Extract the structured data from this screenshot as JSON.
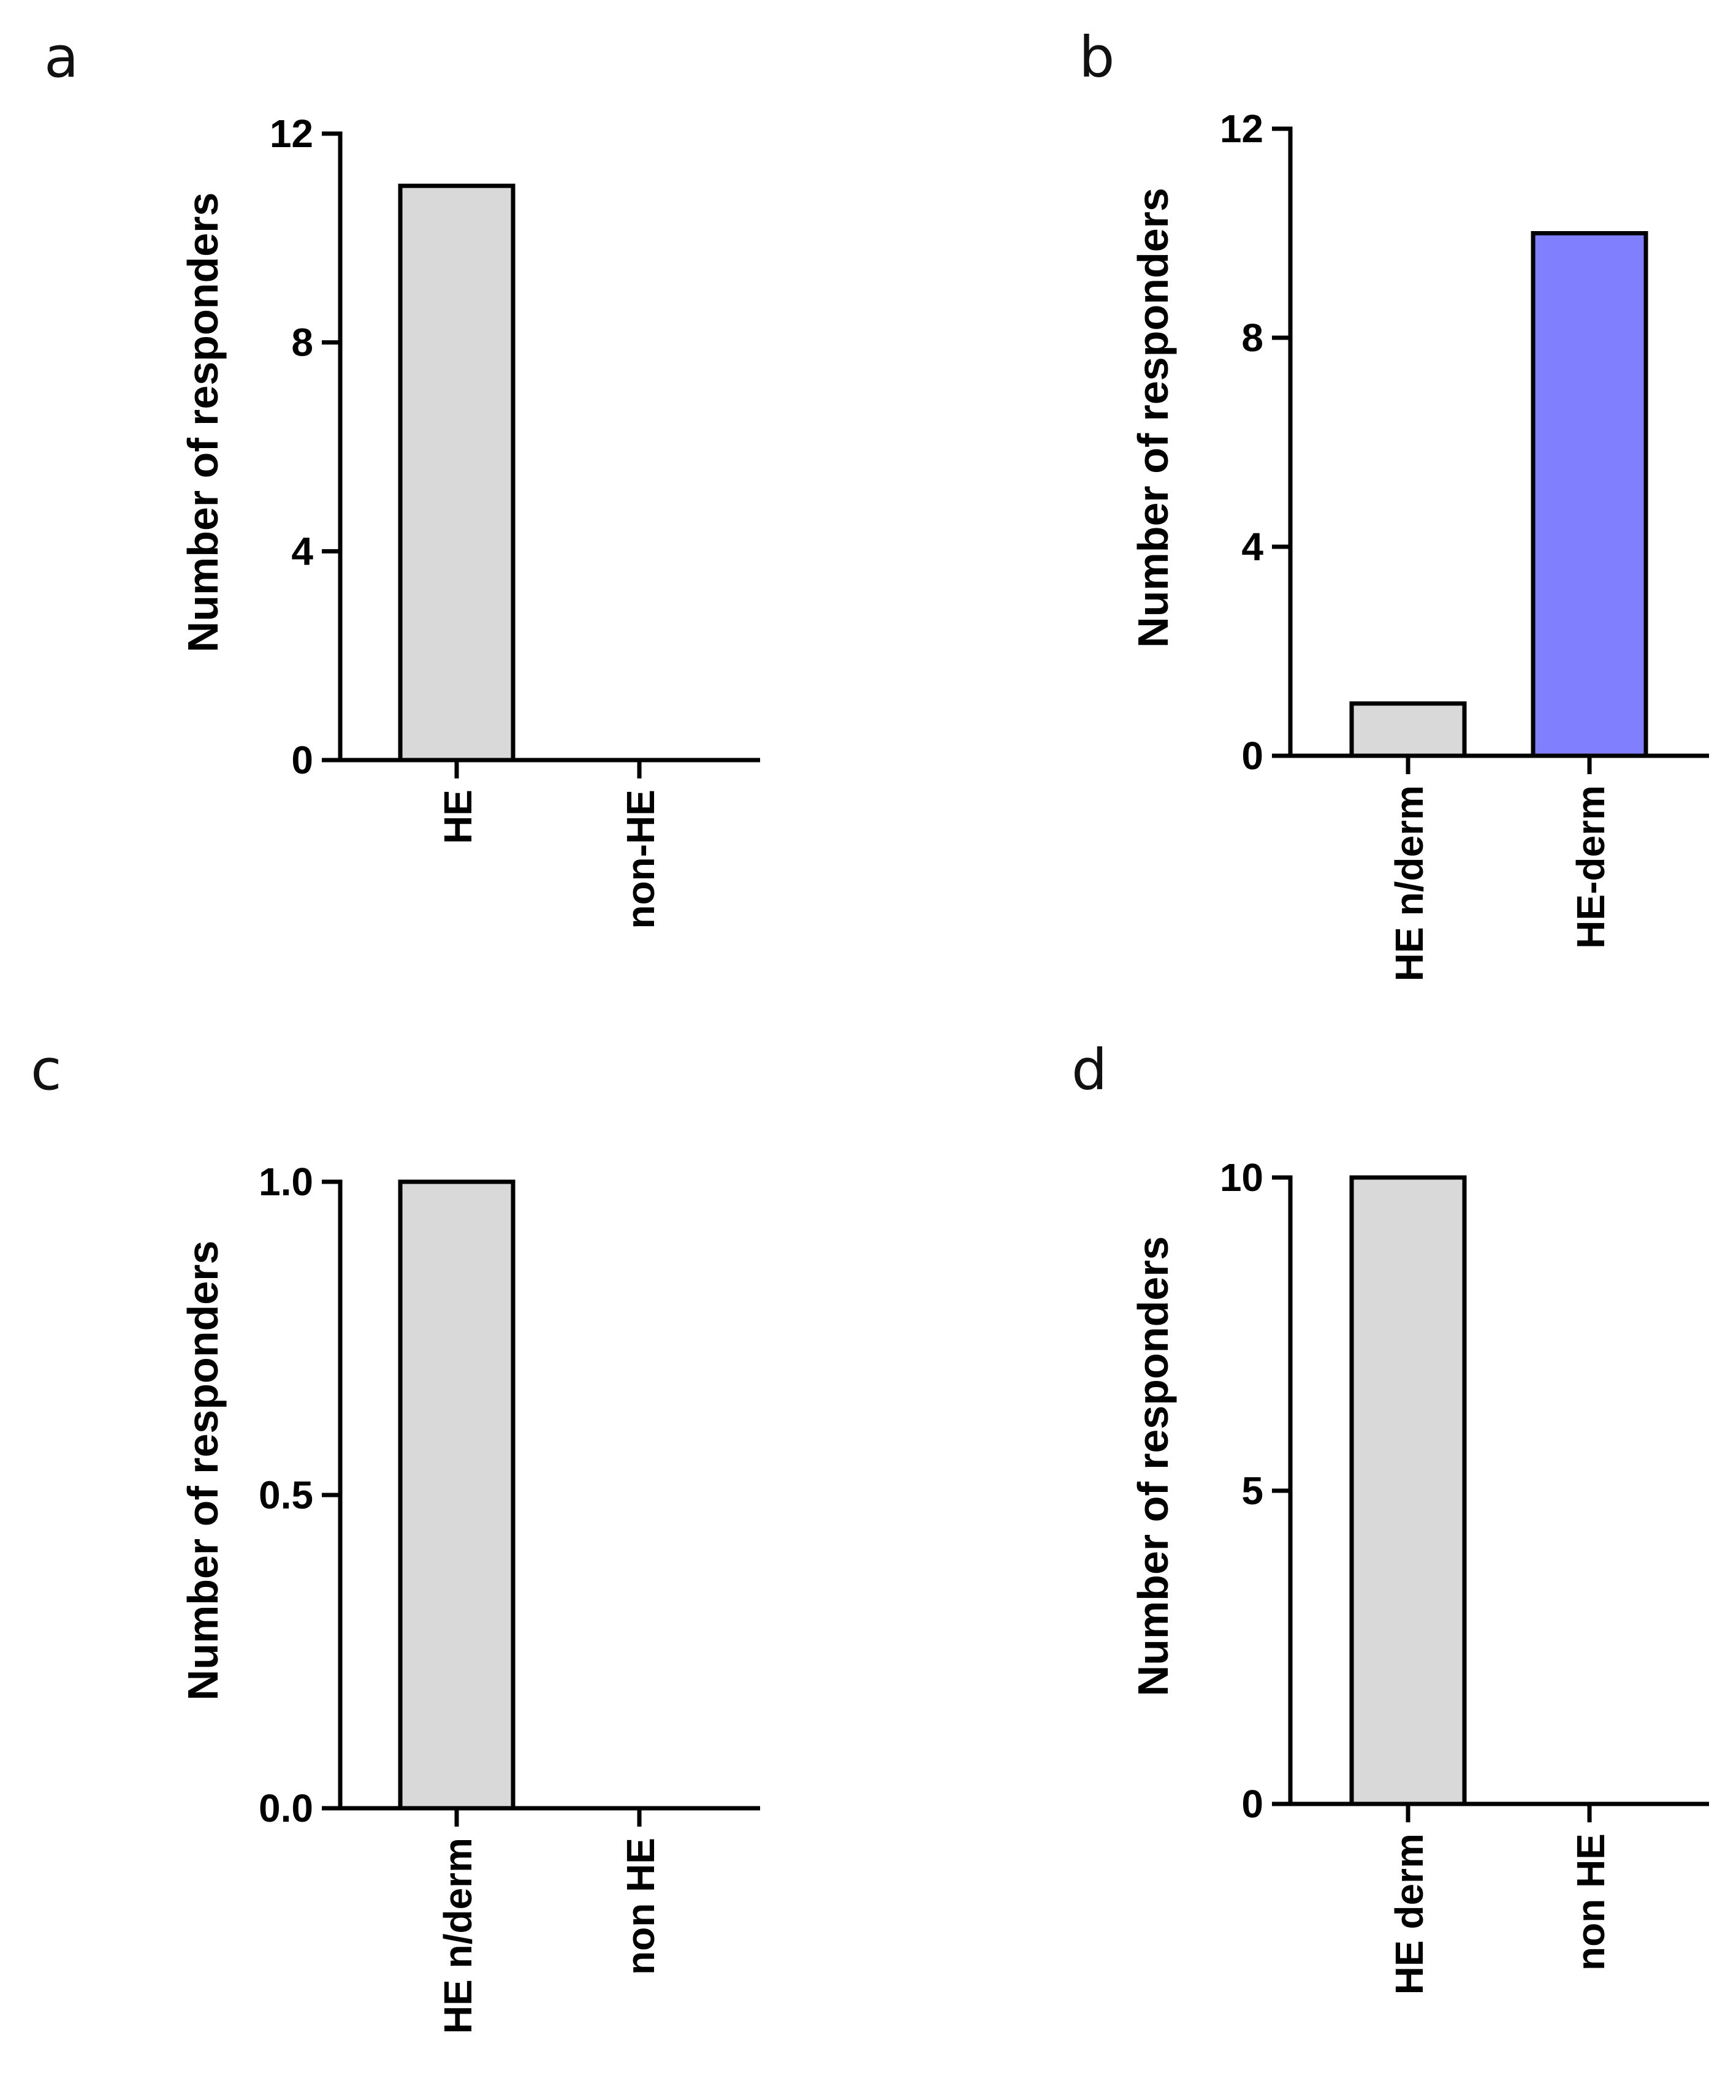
{
  "colors": {
    "bar_grey": "#d9d9d9",
    "bar_blue": "#8080ff",
    "axis": "#000000"
  },
  "chart_data": [
    {
      "panel": "a",
      "type": "bar",
      "ylabel": "Number of responders",
      "categories": [
        "HE",
        "non-HE"
      ],
      "values": [
        11,
        0
      ],
      "bar_colors": [
        "#d9d9d9",
        "#d9d9d9"
      ],
      "ylim": [
        0,
        12
      ],
      "yticks": [
        0,
        4,
        8,
        12
      ],
      "ytick_labels": [
        "0",
        "4",
        "8",
        "12"
      ]
    },
    {
      "panel": "b",
      "type": "bar",
      "ylabel": "Number of responders",
      "categories": [
        "HE n/derm",
        "HE-derm"
      ],
      "values": [
        1,
        10
      ],
      "bar_colors": [
        "#d9d9d9",
        "#8080ff"
      ],
      "ylim": [
        0,
        12
      ],
      "yticks": [
        0,
        4,
        8,
        12
      ],
      "ytick_labels": [
        "0",
        "4",
        "8",
        "12"
      ]
    },
    {
      "panel": "c",
      "type": "bar",
      "ylabel": "Number of responders",
      "categories": [
        "HE n/derm",
        "non HE"
      ],
      "values": [
        1,
        0
      ],
      "bar_colors": [
        "#d9d9d9",
        "#d9d9d9"
      ],
      "ylim": [
        0,
        1
      ],
      "yticks": [
        0,
        0.5,
        1
      ],
      "ytick_labels": [
        "0.0",
        "0.5",
        "1.0"
      ]
    },
    {
      "panel": "d",
      "type": "bar",
      "ylabel": "Number of responders",
      "categories": [
        "HE derm",
        "non HE"
      ],
      "values": [
        10,
        0
      ],
      "bar_colors": [
        "#d9d9d9",
        "#d9d9d9"
      ],
      "ylim": [
        0,
        10
      ],
      "yticks": [
        0,
        5,
        10
      ],
      "ytick_labels": [
        "0",
        "5",
        "10"
      ]
    }
  ]
}
